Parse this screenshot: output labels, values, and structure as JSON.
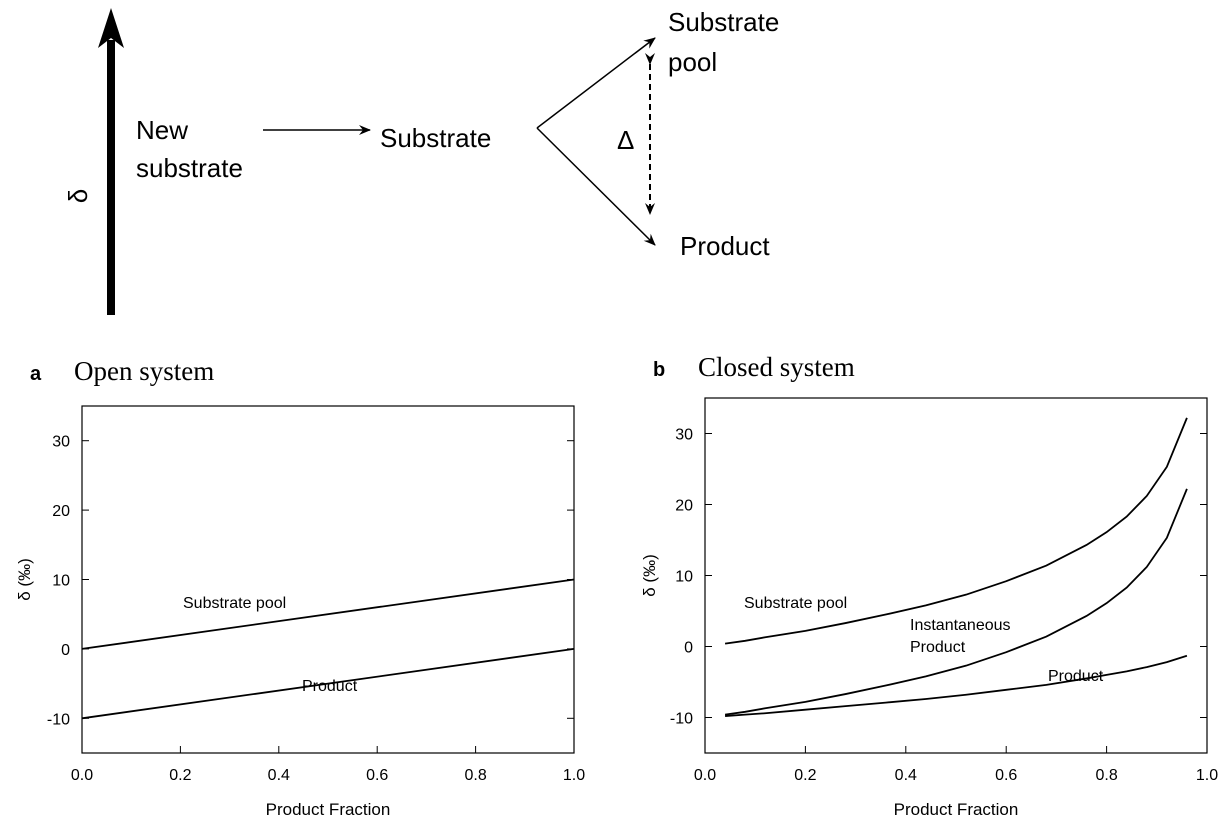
{
  "diagram": {
    "axis_label": "δ",
    "new_substrate": [
      "New",
      "substrate"
    ],
    "substrate": "Substrate",
    "substrate_pool": [
      "Substrate",
      "pool"
    ],
    "product": "Product",
    "delta": "Δ"
  },
  "chart_data": [
    {
      "type": "line",
      "panel": "a",
      "title": "Open system",
      "x_label": "Product Fraction",
      "y_label": "δ (‰)",
      "x": [
        0,
        1
      ],
      "series": [
        {
          "name": "Substrate pool",
          "color": "#000000",
          "values": [
            0,
            10
          ]
        },
        {
          "name": "Product",
          "color": "#000000",
          "values": [
            -10,
            0
          ]
        }
      ],
      "annotations": [
        "Substrate pool",
        "Product"
      ],
      "xlim": [
        0,
        1
      ],
      "ylim": [
        -15,
        35
      ],
      "xticks": [
        {
          "value": 0,
          "label": "0.0"
        },
        {
          "value": 0.2,
          "label": "0.2"
        },
        {
          "value": 0.4,
          "label": "0.4"
        },
        {
          "value": 0.6,
          "label": "0.6"
        },
        {
          "value": 0.8,
          "label": "0.8"
        },
        {
          "value": 1,
          "label": "1.0"
        }
      ],
      "yticks": [
        -10,
        0,
        10,
        20,
        30
      ]
    },
    {
      "type": "line",
      "panel": "b",
      "title": "Closed system",
      "x_label": "Product Fraction",
      "y_label": "δ (‰)",
      "x": [
        0.04,
        0.08,
        0.12,
        0.2,
        0.28,
        0.36,
        0.44,
        0.52,
        0.6,
        0.68,
        0.76,
        0.8,
        0.84,
        0.88,
        0.92,
        0.96
      ],
      "series": [
        {
          "name": "Substrate pool",
          "color": "#000000",
          "values": [
            0.4,
            0.8,
            1.3,
            2.2,
            3.3,
            4.5,
            5.8,
            7.3,
            9.2,
            11.4,
            14.3,
            16.1,
            18.3,
            21.2,
            25.3,
            32.2
          ]
        },
        {
          "name": "Instantaneous Product",
          "color": "#000000",
          "values": [
            -9.6,
            -9.2,
            -8.7,
            -7.8,
            -6.7,
            -5.5,
            -4.2,
            -2.7,
            -0.8,
            1.4,
            4.3,
            6.1,
            8.3,
            11.2,
            15.3,
            22.2
          ]
        },
        {
          "name": "Product",
          "color": "#000000",
          "values": [
            -9.8,
            -9.6,
            -9.4,
            -8.9,
            -8.4,
            -7.9,
            -7.4,
            -6.8,
            -6.1,
            -5.4,
            -4.5,
            -4.0,
            -3.5,
            -2.9,
            -2.2,
            -1.3
          ]
        }
      ],
      "annotations": [
        "Substrate pool",
        "Instantaneous",
        "Product",
        "Product"
      ],
      "xlim": [
        0,
        1
      ],
      "ylim": [
        -15,
        35
      ],
      "xticks": [
        {
          "value": 0,
          "label": "0.0"
        },
        {
          "value": 0.2,
          "label": "0.2"
        },
        {
          "value": 0.4,
          "label": "0.4"
        },
        {
          "value": 0.6,
          "label": "0.6"
        },
        {
          "value": 0.8,
          "label": "0.8"
        },
        {
          "value": 1,
          "label": "1.0"
        }
      ],
      "yticks": [
        -10,
        0,
        10,
        20,
        30
      ]
    }
  ]
}
